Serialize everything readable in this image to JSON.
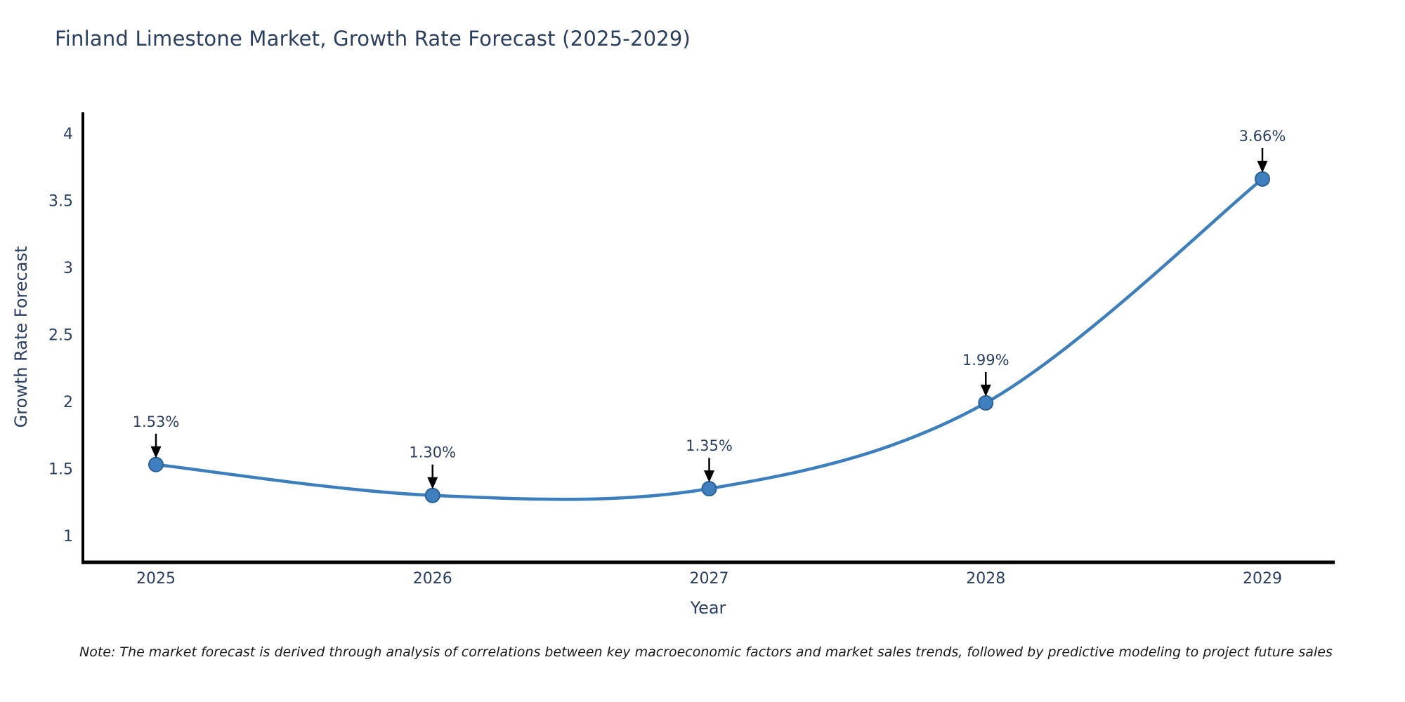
{
  "chart": {
    "title": "Finland Limestone Market, Growth Rate Forecast (2025-2029)",
    "xlabel": "Year",
    "ylabel": "Growth Rate Forecast",
    "note": "Note: The market forecast is derived through analysis of correlations between key macroeconomic factors and market sales trends, followed by predictive modeling to project future sales"
  },
  "chart_data": {
    "type": "line",
    "title": "Finland Limestone Market, Growth Rate Forecast (2025-2029)",
    "xlabel": "Year",
    "ylabel": "Growth Rate Forecast",
    "x": [
      2025,
      2026,
      2027,
      2028,
      2029
    ],
    "categories": [
      "2025",
      "2026",
      "2027",
      "2028",
      "2029"
    ],
    "series": [
      {
        "name": "Growth Rate Forecast",
        "values": [
          1.53,
          1.3,
          1.35,
          1.99,
          3.66
        ],
        "point_labels": [
          "1.53%",
          "1.30%",
          "1.35%",
          "1.99%",
          "3.66%"
        ]
      }
    ],
    "yticks": [
      1,
      1.5,
      2,
      2.5,
      3,
      3.5,
      4
    ],
    "ytick_labels": [
      "1",
      "1.5",
      "2",
      "2.5",
      "3",
      "3.5",
      "4"
    ],
    "ylim": [
      0.78,
      4.16
    ],
    "grid": false,
    "legend": "none",
    "line_shape": "spline",
    "annotations_have_arrows": true,
    "colors": {
      "line": "#3d7ebd",
      "marker_fill": "#3f7fbf",
      "marker_edge": "#2a6298",
      "axis": "#000000",
      "text": "#2a3f5f",
      "arrow": "#000000",
      "background": "#ffffff"
    }
  }
}
